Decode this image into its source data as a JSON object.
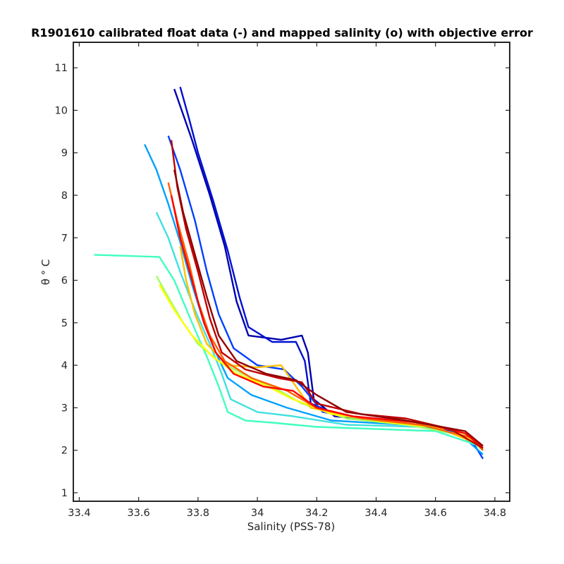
{
  "chart_data": {
    "type": "line",
    "title": "R1901610 calibrated float data (-) and mapped salinity (o) with objective error",
    "xlabel": "Salinity (PSS-78)",
    "ylabel": "θ ° C",
    "xlim": [
      33.38,
      34.85
    ],
    "ylim": [
      0.8,
      11.6
    ],
    "xticks": [
      "33.4",
      "33.6",
      "33.8",
      "34",
      "34.2",
      "34.4",
      "34.6",
      "34.8"
    ],
    "yticks": [
      "1",
      "2",
      "3",
      "4",
      "5",
      "6",
      "7",
      "8",
      "9",
      "10",
      "11"
    ],
    "grid": false,
    "legend": "none",
    "colormap": "jet",
    "series": [
      {
        "color": "#0000b0",
        "points": [
          [
            33.72,
            10.5
          ],
          [
            33.74,
            10.1
          ],
          [
            33.78,
            9.3
          ],
          [
            33.84,
            8.0
          ],
          [
            33.89,
            6.8
          ],
          [
            33.93,
            5.5
          ],
          [
            33.97,
            4.7
          ],
          [
            34.08,
            4.6
          ],
          [
            34.15,
            4.7
          ],
          [
            34.17,
            4.3
          ],
          [
            34.19,
            3.2
          ],
          [
            34.26,
            2.8
          ],
          [
            34.4,
            2.7
          ],
          [
            34.55,
            2.6
          ],
          [
            34.68,
            2.4
          ],
          [
            34.76,
            2.05
          ]
        ]
      },
      {
        "color": "#0010d0",
        "points": [
          [
            33.74,
            10.55
          ],
          [
            33.77,
            9.8
          ],
          [
            33.8,
            9.0
          ],
          [
            33.85,
            7.9
          ],
          [
            33.9,
            6.7
          ],
          [
            33.94,
            5.6
          ],
          [
            33.97,
            4.9
          ],
          [
            34.05,
            4.55
          ],
          [
            34.13,
            4.55
          ],
          [
            34.16,
            4.1
          ],
          [
            34.18,
            3.1
          ],
          [
            34.3,
            2.75
          ],
          [
            34.5,
            2.62
          ],
          [
            34.7,
            2.35
          ],
          [
            34.76,
            2.0
          ]
        ]
      },
      {
        "color": "#0040ff",
        "points": [
          [
            33.7,
            9.4
          ],
          [
            33.74,
            8.6
          ],
          [
            33.79,
            7.4
          ],
          [
            33.83,
            6.2
          ],
          [
            33.87,
            5.2
          ],
          [
            33.92,
            4.4
          ],
          [
            34.0,
            4.0
          ],
          [
            34.09,
            3.9
          ],
          [
            34.15,
            3.5
          ],
          [
            34.22,
            2.9
          ],
          [
            34.4,
            2.7
          ],
          [
            34.6,
            2.55
          ],
          [
            34.72,
            2.25
          ],
          [
            34.76,
            1.8
          ]
        ]
      },
      {
        "color": "#00a0ff",
        "points": [
          [
            33.62,
            9.2
          ],
          [
            33.66,
            8.6
          ],
          [
            33.7,
            7.8
          ],
          [
            33.74,
            6.9
          ],
          [
            33.78,
            5.9
          ],
          [
            33.82,
            5.0
          ],
          [
            33.86,
            4.3
          ],
          [
            33.9,
            3.7
          ],
          [
            33.98,
            3.3
          ],
          [
            34.1,
            3.0
          ],
          [
            34.25,
            2.7
          ],
          [
            34.5,
            2.6
          ],
          [
            34.68,
            2.4
          ],
          [
            34.76,
            1.9
          ]
        ]
      },
      {
        "color": "#40ffc0",
        "points": [
          [
            33.45,
            6.6
          ],
          [
            33.67,
            6.55
          ],
          [
            33.72,
            6.0
          ],
          [
            33.78,
            5.0
          ],
          [
            33.83,
            4.2
          ],
          [
            33.87,
            3.5
          ],
          [
            33.9,
            2.9
          ],
          [
            33.96,
            2.7
          ],
          [
            34.05,
            2.65
          ],
          [
            34.2,
            2.55
          ],
          [
            34.4,
            2.5
          ],
          [
            34.6,
            2.45
          ],
          [
            34.75,
            2.1
          ]
        ]
      },
      {
        "color": "#40e0e0",
        "points": [
          [
            33.66,
            7.6
          ],
          [
            33.7,
            7.0
          ],
          [
            33.74,
            6.2
          ],
          [
            33.79,
            5.3
          ],
          [
            33.84,
            4.5
          ],
          [
            33.88,
            3.8
          ],
          [
            33.91,
            3.2
          ],
          [
            34.0,
            2.9
          ],
          [
            34.12,
            2.8
          ],
          [
            34.3,
            2.6
          ],
          [
            34.55,
            2.55
          ],
          [
            34.72,
            2.3
          ]
        ]
      },
      {
        "color": "#a0ff60",
        "points": [
          [
            33.66,
            6.1
          ],
          [
            33.7,
            5.6
          ],
          [
            33.75,
            5.0
          ],
          [
            33.8,
            4.5
          ],
          [
            33.87,
            4.1
          ],
          [
            33.95,
            3.8
          ],
          [
            34.05,
            3.5
          ],
          [
            34.15,
            3.1
          ],
          [
            34.3,
            2.75
          ],
          [
            34.5,
            2.6
          ],
          [
            34.7,
            2.35
          ],
          [
            34.76,
            2.0
          ]
        ]
      },
      {
        "color": "#ffff00",
        "points": [
          [
            33.67,
            5.9
          ],
          [
            33.72,
            5.3
          ],
          [
            33.78,
            4.7
          ],
          [
            33.85,
            4.2
          ],
          [
            33.93,
            3.8
          ],
          [
            34.02,
            3.55
          ],
          [
            34.12,
            3.2
          ],
          [
            34.25,
            2.85
          ],
          [
            34.45,
            2.65
          ],
          [
            34.65,
            2.5
          ],
          [
            34.75,
            2.15
          ]
        ]
      },
      {
        "color": "#ffc000",
        "points": [
          [
            33.74,
            6.8
          ],
          [
            33.76,
            6.0
          ],
          [
            33.79,
            5.2
          ],
          [
            33.83,
            4.5
          ],
          [
            33.9,
            4.0
          ],
          [
            34.0,
            3.95
          ],
          [
            34.08,
            4.0
          ],
          [
            34.12,
            3.6
          ],
          [
            34.18,
            3.0
          ],
          [
            34.35,
            2.75
          ],
          [
            34.6,
            2.55
          ],
          [
            34.76,
            2.1
          ]
        ]
      },
      {
        "color": "#ff6000",
        "points": [
          [
            33.7,
            8.3
          ],
          [
            33.73,
            7.4
          ],
          [
            33.77,
            6.4
          ],
          [
            33.8,
            5.5
          ],
          [
            33.84,
            4.7
          ],
          [
            33.89,
            4.1
          ],
          [
            33.98,
            3.7
          ],
          [
            34.1,
            3.4
          ],
          [
            34.2,
            3.0
          ],
          [
            34.35,
            2.75
          ],
          [
            34.55,
            2.6
          ],
          [
            34.72,
            2.3
          ],
          [
            34.76,
            2.0
          ]
        ]
      },
      {
        "color": "#ff0000",
        "points": [
          [
            33.71,
            8.0
          ],
          [
            33.74,
            7.0
          ],
          [
            33.78,
            6.0
          ],
          [
            33.82,
            5.0
          ],
          [
            33.86,
            4.3
          ],
          [
            33.92,
            3.8
          ],
          [
            34.02,
            3.5
          ],
          [
            34.12,
            3.4
          ],
          [
            34.2,
            3.0
          ],
          [
            34.32,
            2.8
          ],
          [
            34.55,
            2.65
          ],
          [
            34.7,
            2.4
          ],
          [
            34.76,
            2.05
          ]
        ]
      },
      {
        "color": "#c00000",
        "points": [
          [
            33.71,
            9.3
          ],
          [
            33.73,
            8.2
          ],
          [
            33.76,
            7.2
          ],
          [
            33.8,
            6.2
          ],
          [
            33.84,
            5.1
          ],
          [
            33.88,
            4.3
          ],
          [
            33.96,
            3.9
          ],
          [
            34.07,
            3.7
          ],
          [
            34.15,
            3.6
          ],
          [
            34.2,
            3.1
          ],
          [
            34.35,
            2.85
          ],
          [
            34.5,
            2.75
          ],
          [
            34.65,
            2.5
          ],
          [
            34.76,
            2.05
          ]
        ]
      },
      {
        "color": "#900000",
        "points": [
          [
            33.72,
            8.6
          ],
          [
            33.75,
            7.6
          ],
          [
            33.79,
            6.6
          ],
          [
            33.83,
            5.6
          ],
          [
            33.87,
            4.7
          ],
          [
            33.93,
            4.1
          ],
          [
            34.03,
            3.8
          ],
          [
            34.13,
            3.65
          ],
          [
            34.2,
            3.3
          ],
          [
            34.3,
            2.9
          ],
          [
            34.5,
            2.7
          ],
          [
            34.7,
            2.45
          ],
          [
            34.76,
            2.1
          ]
        ]
      }
    ]
  }
}
